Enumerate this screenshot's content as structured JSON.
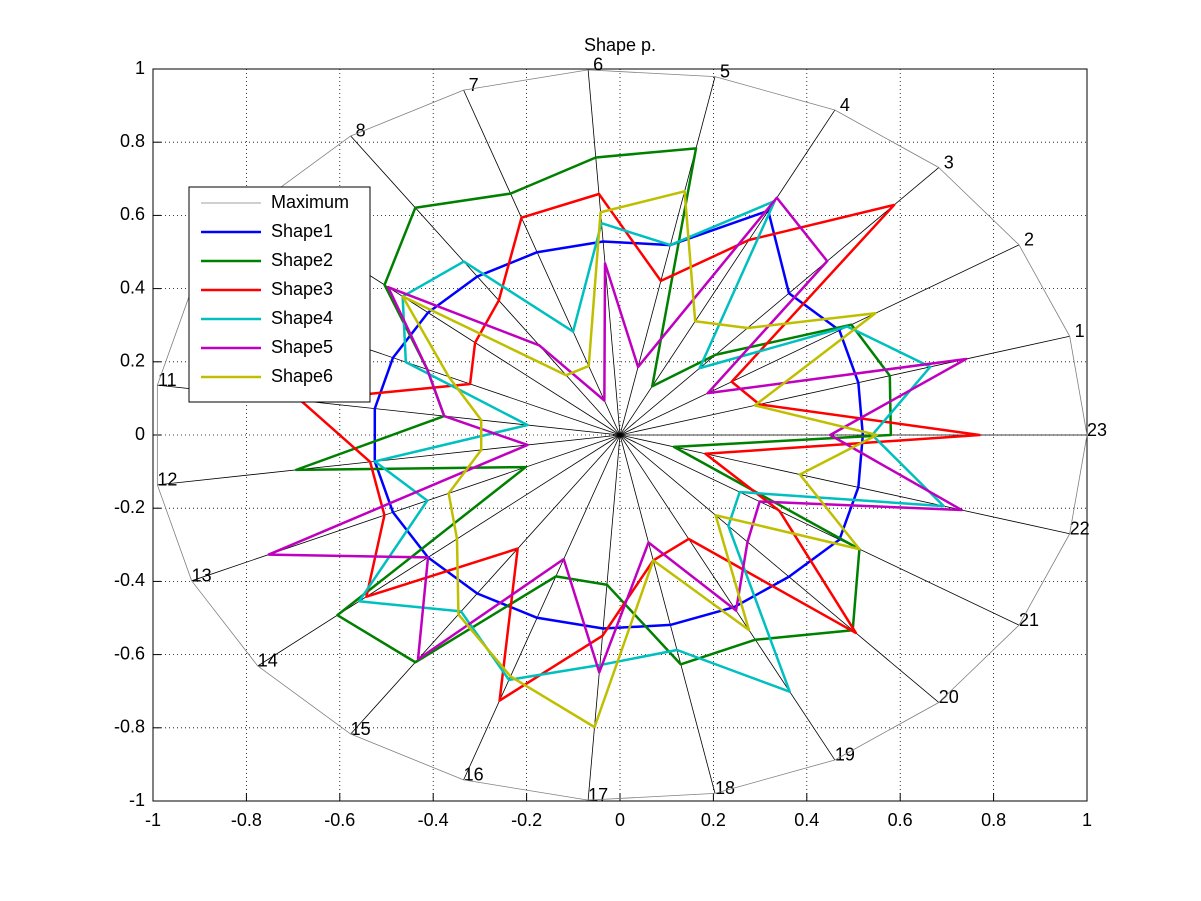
{
  "chart_data": {
    "type": "radar",
    "title": "Shape p.",
    "categories": [
      "1",
      "2",
      "3",
      "4",
      "5",
      "6",
      "7",
      "8",
      "9",
      "10",
      "11",
      "12",
      "13",
      "14",
      "15",
      "16",
      "17",
      "18",
      "19",
      "20",
      "21",
      "22",
      "23"
    ],
    "series": [
      {
        "name": "Maximum",
        "color": "#808080",
        "values": [
          1,
          1,
          1,
          1,
          1,
          1,
          1,
          1,
          1,
          1,
          1,
          1,
          1,
          1,
          1,
          1,
          1,
          1,
          1,
          1,
          1,
          1,
          1
        ]
      },
      {
        "name": "Shape1",
        "color": "#0000ff",
        "values": [
          0.53,
          0.55,
          0.53,
          0.69,
          0.53,
          0.53,
          0.53,
          0.53,
          0.53,
          0.53,
          0.53,
          0.53,
          0.53,
          0.53,
          0.53,
          0.53,
          0.53,
          0.53,
          0.53,
          0.53,
          0.55,
          0.53,
          0.52
        ]
      },
      {
        "name": "Shape2",
        "color": "#008000",
        "values": [
          0.6,
          0.58,
          0.3,
          0.15,
          0.8,
          0.76,
          0.7,
          0.76,
          0.65,
          0.45,
          0.38,
          0.7,
          0.22,
          0.78,
          0.76,
          0.41,
          0.41,
          0.64,
          0.63,
          0.73,
          0.6,
          0.12,
          0.58
        ]
      },
      {
        "name": "Shape3",
        "color": "#ff0000",
        "values": [
          0.31,
          0.28,
          0.86,
          0.6,
          0.43,
          0.66,
          0.63,
          0.45,
          0.4,
          0.35,
          0.69,
          0.54,
          0.55,
          0.7,
          0.38,
          0.77,
          0.55,
          0.35,
          0.32,
          0.74,
          0.4,
          0.19,
          0.77
        ]
      },
      {
        "name": "Shape4",
        "color": "#00bfbf",
        "values": [
          0.69,
          0.57,
          0.25,
          0.72,
          0.53,
          0.58,
          0.3,
          0.58,
          0.6,
          0.5,
          0.2,
          0.53,
          0.45,
          0.72,
          0.59,
          0.71,
          0.63,
          0.6,
          0.79,
          0.34,
          0.3,
          0.72,
          0.54
        ]
      },
      {
        "name": "Shape5",
        "color": "#bf00bf",
        "values": [
          0.77,
          0.22,
          0.65,
          0.73,
          0.19,
          0.47,
          0.1,
          0.3,
          0.64,
          0.45,
          0.38,
          0.2,
          0.82,
          0.53,
          0.75,
          0.36,
          0.65,
          0.3,
          0.54,
          0.4,
          0.35,
          0.76,
          0.45
        ]
      },
      {
        "name": "Shape6",
        "color": "#bfbf00",
        "values": [
          0.3,
          0.64,
          0.4,
          0.35,
          0.68,
          0.61,
          0.2,
          0.2,
          0.6,
          0.4,
          0.3,
          0.3,
          0.4,
          0.45,
          0.6,
          0.7,
          0.8,
          0.35,
          0.6,
          0.3,
          0.6,
          0.4,
          0.55
        ]
      }
    ],
    "xlim": [
      -1,
      1
    ],
    "ylim": [
      -1,
      1
    ],
    "xticks": [
      -1,
      -0.8,
      -0.6,
      -0.4,
      -0.2,
      0,
      0.2,
      0.4,
      0.6,
      0.8,
      1
    ],
    "yticks": [
      -1,
      -0.8,
      -0.6,
      -0.4,
      -0.2,
      0,
      0.2,
      0.4,
      0.6,
      0.8,
      1
    ],
    "grid": true,
    "legend": "northwest"
  }
}
